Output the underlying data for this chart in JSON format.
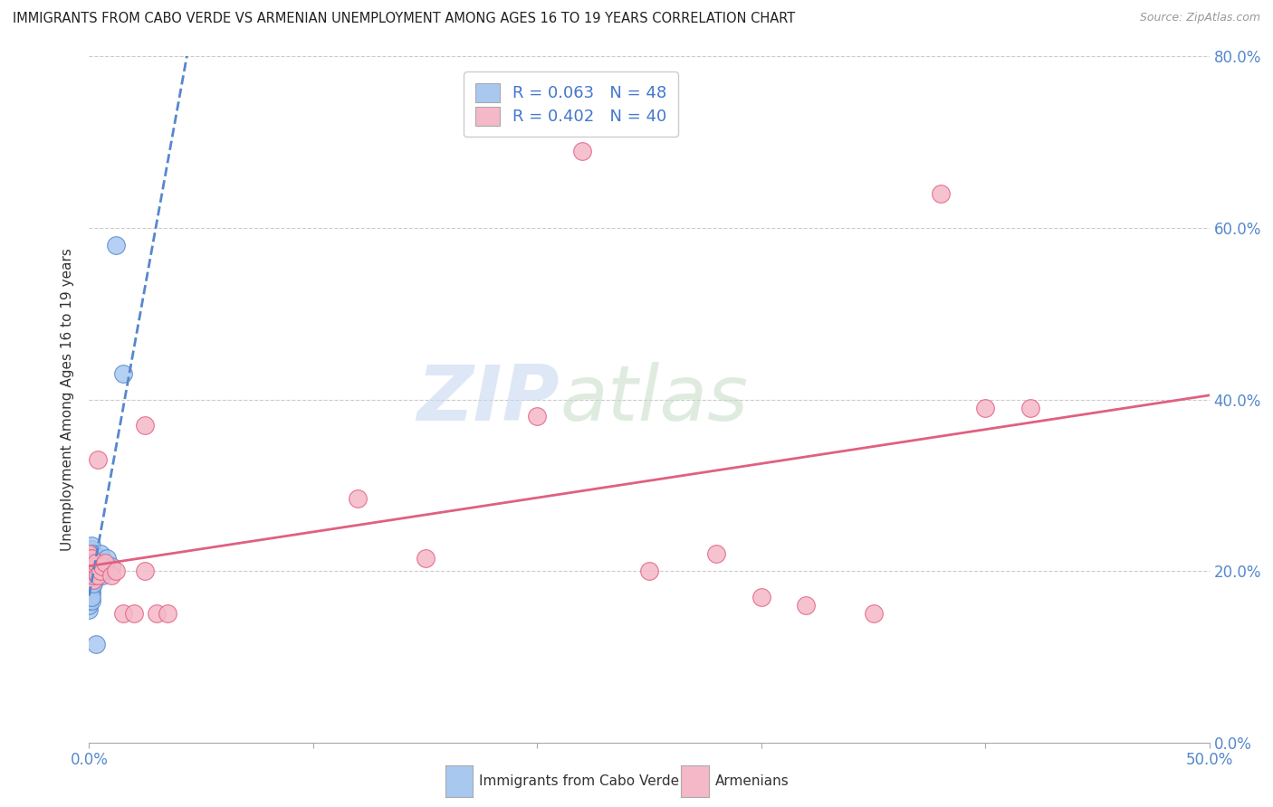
{
  "title": "IMMIGRANTS FROM CABO VERDE VS ARMENIAN UNEMPLOYMENT AMONG AGES 16 TO 19 YEARS CORRELATION CHART",
  "source": "Source: ZipAtlas.com",
  "ylabel_left": "Unemployment Among Ages 16 to 19 years",
  "legend_label1": "Immigrants from Cabo Verde",
  "legend_label2": "Armenians",
  "R1": 0.063,
  "N1": 48,
  "R2": 0.402,
  "N2": 40,
  "color1": "#a8c8f0",
  "color2": "#f5b8c8",
  "trendline1_color": "#5588cc",
  "trendline2_color": "#e06080",
  "background_color": "#ffffff",
  "grid_color": "#cccccc",
  "watermark_zip": "ZIP",
  "watermark_atlas": "atlas",
  "cabo_verde_x": [
    0.0,
    0.0,
    0.0,
    0.0,
    0.0,
    0.0,
    0.0,
    0.0,
    0.0,
    0.0,
    0.0,
    0.001,
    0.001,
    0.001,
    0.001,
    0.001,
    0.001,
    0.001,
    0.001,
    0.001,
    0.001,
    0.001,
    0.001,
    0.001,
    0.002,
    0.002,
    0.002,
    0.002,
    0.002,
    0.002,
    0.002,
    0.002,
    0.003,
    0.003,
    0.003,
    0.003,
    0.004,
    0.004,
    0.004,
    0.004,
    0.005,
    0.005,
    0.006,
    0.007,
    0.008,
    0.01,
    0.012,
    0.015
  ],
  "cabo_verde_y": [
    0.175,
    0.19,
    0.195,
    0.2,
    0.205,
    0.21,
    0.155,
    0.16,
    0.165,
    0.17,
    0.215,
    0.175,
    0.18,
    0.185,
    0.195,
    0.2,
    0.205,
    0.21,
    0.215,
    0.22,
    0.225,
    0.165,
    0.17,
    0.23,
    0.19,
    0.195,
    0.2,
    0.205,
    0.21,
    0.215,
    0.185,
    0.22,
    0.195,
    0.2,
    0.205,
    0.115,
    0.195,
    0.2,
    0.205,
    0.21,
    0.215,
    0.22,
    0.195,
    0.2,
    0.215,
    0.205,
    0.58,
    0.43
  ],
  "armenian_x": [
    0.0,
    0.0,
    0.0,
    0.0,
    0.0,
    0.001,
    0.001,
    0.001,
    0.001,
    0.001,
    0.002,
    0.002,
    0.002,
    0.003,
    0.003,
    0.004,
    0.004,
    0.005,
    0.006,
    0.007,
    0.01,
    0.012,
    0.015,
    0.02,
    0.025,
    0.025,
    0.03,
    0.035,
    0.12,
    0.15,
    0.2,
    0.22,
    0.25,
    0.28,
    0.3,
    0.32,
    0.35,
    0.38,
    0.4,
    0.42
  ],
  "armenian_y": [
    0.195,
    0.205,
    0.21,
    0.215,
    0.22,
    0.195,
    0.2,
    0.205,
    0.21,
    0.215,
    0.19,
    0.195,
    0.2,
    0.205,
    0.21,
    0.33,
    0.195,
    0.2,
    0.205,
    0.21,
    0.195,
    0.2,
    0.15,
    0.15,
    0.2,
    0.37,
    0.15,
    0.15,
    0.285,
    0.215,
    0.38,
    0.69,
    0.2,
    0.22,
    0.17,
    0.16,
    0.15,
    0.64,
    0.39,
    0.39
  ],
  "xlim": [
    0.0,
    0.5
  ],
  "ylim": [
    0.0,
    0.8
  ],
  "ytick_vals": [
    0.0,
    0.2,
    0.4,
    0.6,
    0.8
  ],
  "xtick_vals": [
    0.0,
    0.1,
    0.2,
    0.3,
    0.4,
    0.5
  ]
}
